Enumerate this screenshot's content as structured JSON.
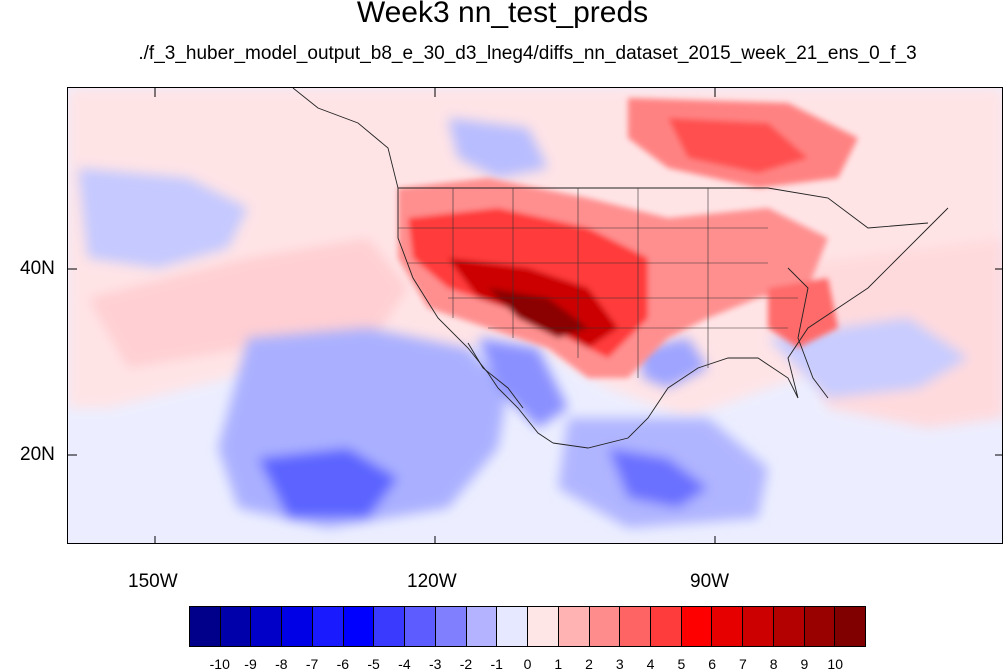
{
  "title": "Week3 nn_test_preds",
  "subtitle": "./f_3_huber_model_output_b8_e_30_d3_lneg4/diffs_nn_dataset_2015_week_21_ens_0_f_3",
  "map": {
    "lat_labels": [
      "40N",
      "20N"
    ],
    "lon_labels": [
      "150W",
      "120W",
      "90W"
    ]
  },
  "colorbar": {
    "labels": [
      "-10",
      "-9",
      "-8",
      "-7",
      "-6",
      "-5",
      "-4",
      "-3",
      "-2",
      "-1",
      "0",
      "1",
      "2",
      "3",
      "4",
      "5",
      "6",
      "7",
      "8",
      "9",
      "10"
    ],
    "colors": [
      "#00008b",
      "#0000aa",
      "#0000c8",
      "#0000e6",
      "#1a1aff",
      "#0000ff",
      "#3a3aff",
      "#5c5cff",
      "#8080ff",
      "#b3b3ff",
      "#e6e8ff",
      "#ffe6e6",
      "#ffb3b3",
      "#ff8c8c",
      "#ff6464",
      "#ff3c3c",
      "#ff0000",
      "#e60000",
      "#cc0000",
      "#b30000",
      "#990000",
      "#800000"
    ]
  }
}
